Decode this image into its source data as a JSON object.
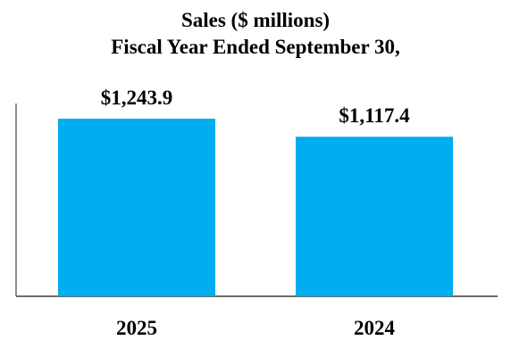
{
  "chart_data": {
    "type": "bar",
    "title": "Sales ($ millions)",
    "subtitle": "Fiscal Year Ended September 30,",
    "categories": [
      "2025",
      "2024"
    ],
    "values": [
      1243.9,
      1117.4
    ],
    "value_labels": [
      "$1,243.9",
      "$1,117.4"
    ],
    "xlabel": "",
    "ylabel": "",
    "ylim": [
      0,
      1400
    ],
    "grid": false,
    "legend": "none",
    "bar_color": "#00adef",
    "axis_color": "#6b6b6b"
  }
}
